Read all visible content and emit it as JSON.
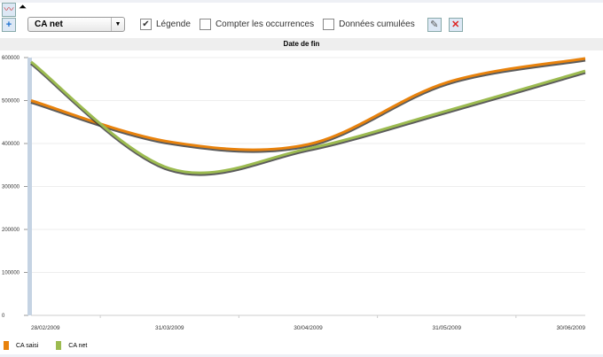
{
  "toolbar": {
    "chart_icon": "line-chart-icon",
    "collapse_icon": "collapse-arrow-icon",
    "add_icon": "plus-icon",
    "select_value": "CA net",
    "legend_label": "Légende",
    "legend_checked": true,
    "count_label": "Compter les occurrences",
    "count_checked": false,
    "cumul_label": "Données cumulées",
    "cumul_checked": false,
    "edit_icon": "edit-pencil-icon",
    "delete_icon": "delete-x-icon"
  },
  "chart_data": {
    "type": "line",
    "title": "Date de fin",
    "x": [
      "28/02/2009",
      "31/03/2009",
      "30/04/2009",
      "31/05/2009",
      "30/06/2009"
    ],
    "yticks": [
      0,
      100000,
      200000,
      300000,
      400000,
      500000,
      600000
    ],
    "ylim": [
      0,
      600000
    ],
    "grid": true,
    "legend": "bottom-left",
    "series": [
      {
        "name": "CA saisi",
        "color": "#e8820c",
        "values": [
          500000,
          404000,
          398000,
          542000,
          598000
        ]
      },
      {
        "name": "CA net",
        "color": "#9cbb50",
        "values": [
          590000,
          342000,
          388000,
          476000,
          569000
        ]
      }
    ]
  }
}
